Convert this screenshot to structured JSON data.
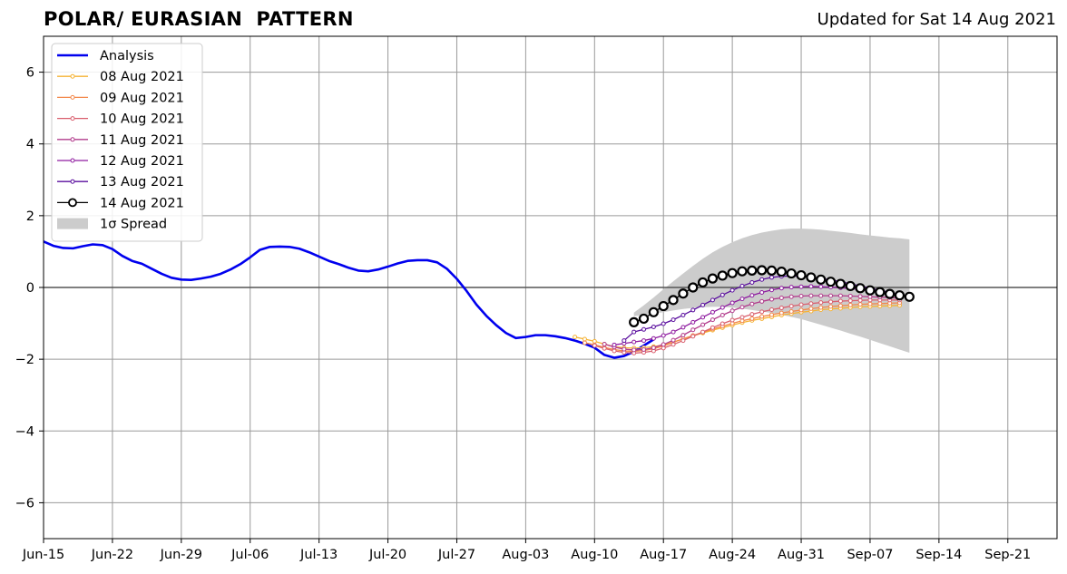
{
  "header": {
    "title": "POLAR/ EURASIAN  PATTERN",
    "updated": "Updated for Sat 14 Aug 2021"
  },
  "chart_data": {
    "type": "line",
    "title": "POLAR/ EURASIAN  PATTERN",
    "xlabel": "",
    "ylabel": "",
    "x_axis_type": "date",
    "xlim": [
      "2021-06-15",
      "2021-09-26"
    ],
    "ylim": [
      -7,
      7
    ],
    "x_ticks": [
      "2021-06-15",
      "2021-06-22",
      "2021-06-29",
      "2021-07-06",
      "2021-07-13",
      "2021-07-20",
      "2021-07-27",
      "2021-08-03",
      "2021-08-10",
      "2021-08-17",
      "2021-08-24",
      "2021-08-31",
      "2021-09-07",
      "2021-09-14",
      "2021-09-21"
    ],
    "x_tick_labels": [
      "Jun-15",
      "Jun-22",
      "Jun-29",
      "Jul-06",
      "Jul-13",
      "Jul-20",
      "Jul-27",
      "Aug-03",
      "Aug-10",
      "Aug-17",
      "Aug-24",
      "Aug-31",
      "Sep-07",
      "Sep-14",
      "Sep-21"
    ],
    "y_ticks": [
      -6,
      -4,
      -2,
      0,
      2,
      4,
      6
    ],
    "y_tick_labels": [
      "−6",
      "−4",
      "−2",
      "0",
      "2",
      "4",
      "6"
    ],
    "grid": true,
    "zero_line": 0,
    "legend_position": "top-left",
    "series": [
      {
        "name": "Analysis",
        "style": "analysis",
        "color": "#0000ee",
        "start_date": "2021-06-15",
        "values": [
          1.28,
          1.16,
          1.1,
          1.09,
          1.15,
          1.2,
          1.18,
          1.07,
          0.88,
          0.74,
          0.66,
          0.52,
          0.38,
          0.27,
          0.22,
          0.21,
          0.25,
          0.3,
          0.38,
          0.5,
          0.65,
          0.84,
          1.05,
          1.13,
          1.14,
          1.13,
          1.08,
          0.98,
          0.86,
          0.74,
          0.65,
          0.55,
          0.47,
          0.45,
          0.5,
          0.58,
          0.67,
          0.74,
          0.76,
          0.76,
          0.7,
          0.52,
          0.24,
          -0.1,
          -0.48,
          -0.79,
          -1.05,
          -1.27,
          -1.41,
          -1.38,
          -1.33,
          -1.33,
          -1.36,
          -1.41,
          -1.48,
          -1.57,
          -1.68,
          -1.88,
          -1.96,
          -1.91,
          -1.79,
          -1.62,
          -1.45
        ]
      },
      {
        "name": "08 Aug 2021",
        "style": "forecast",
        "color": "#f5b335",
        "start_date": "2021-08-08",
        "values": [
          -1.38,
          -1.44,
          -1.5,
          -1.58,
          -1.65,
          -1.68,
          -1.69,
          -1.68,
          -1.65,
          -1.6,
          -1.52,
          -1.44,
          -1.35,
          -1.27,
          -1.19,
          -1.12,
          -1.05,
          -0.98,
          -0.92,
          -0.87,
          -0.82,
          -0.77,
          -0.73,
          -0.69,
          -0.66,
          -0.62,
          -0.6,
          -0.58,
          -0.56,
          -0.54,
          -0.53,
          -0.52,
          -0.51,
          -0.5
        ]
      },
      {
        "name": "09 Aug 2021",
        "style": "forecast",
        "color": "#f3884a",
        "start_date": "2021-08-09",
        "values": [
          -1.54,
          -1.6,
          -1.67,
          -1.73,
          -1.77,
          -1.78,
          -1.76,
          -1.71,
          -1.63,
          -1.53,
          -1.43,
          -1.34,
          -1.25,
          -1.16,
          -1.08,
          -1.0,
          -0.93,
          -0.87,
          -0.81,
          -0.76,
          -0.71,
          -0.67,
          -0.63,
          -0.59,
          -0.56,
          -0.53,
          -0.51,
          -0.49,
          -0.47,
          -0.46,
          -0.45,
          -0.44,
          -0.43
        ]
      },
      {
        "name": "10 Aug 2021",
        "style": "forecast",
        "color": "#d95f6e",
        "start_date": "2021-08-10",
        "values": [
          -1.62,
          -1.7,
          -1.77,
          -1.81,
          -1.83,
          -1.81,
          -1.77,
          -1.69,
          -1.59,
          -1.48,
          -1.36,
          -1.24,
          -1.12,
          -1.01,
          -0.91,
          -0.83,
          -0.75,
          -0.68,
          -0.62,
          -0.57,
          -0.52,
          -0.48,
          -0.45,
          -0.42,
          -0.4,
          -0.38,
          -0.37,
          -0.36,
          -0.35,
          -0.35,
          -0.35,
          -0.35
        ]
      },
      {
        "name": "11 Aug 2021",
        "style": "forecast",
        "color": "#b23b8c",
        "start_date": "2021-08-11",
        "values": [
          -1.58,
          -1.66,
          -1.72,
          -1.74,
          -1.73,
          -1.68,
          -1.59,
          -1.47,
          -1.33,
          -1.18,
          -1.04,
          -0.9,
          -0.77,
          -0.65,
          -0.55,
          -0.46,
          -0.39,
          -0.33,
          -0.29,
          -0.26,
          -0.24,
          -0.23,
          -0.23,
          -0.23,
          -0.23,
          -0.24,
          -0.25,
          -0.26,
          -0.27,
          -0.28,
          -0.3
        ]
      },
      {
        "name": "12 Aug 2021",
        "style": "forecast",
        "color": "#8f1ca0",
        "start_date": "2021-08-12",
        "values": [
          -1.6,
          -1.56,
          -1.52,
          -1.48,
          -1.42,
          -1.34,
          -1.24,
          -1.11,
          -0.97,
          -0.83,
          -0.69,
          -0.56,
          -0.43,
          -0.32,
          -0.22,
          -0.14,
          -0.07,
          -0.02,
          0.01,
          0.02,
          0.03,
          0.02,
          0.01,
          -0.01,
          -0.03,
          -0.06,
          -0.1,
          -0.14,
          -0.18,
          -0.23
        ]
      },
      {
        "name": "13 Aug 2021",
        "style": "forecast",
        "color": "#5a0e9e",
        "start_date": "2021-08-13",
        "values": [
          -1.48,
          -1.24,
          -1.17,
          -1.1,
          -1.01,
          -0.9,
          -0.77,
          -0.63,
          -0.49,
          -0.35,
          -0.21,
          -0.08,
          0.04,
          0.14,
          0.22,
          0.28,
          0.31,
          0.32,
          0.31,
          0.29,
          0.25,
          0.21,
          0.16,
          0.1,
          0.04,
          -0.02,
          -0.08,
          -0.14,
          -0.2
        ]
      },
      {
        "name": "14 Aug 2021",
        "style": "current",
        "color": "#000000",
        "start_date": "2021-08-14",
        "values": [
          -0.97,
          -0.87,
          -0.69,
          -0.52,
          -0.35,
          -0.17,
          0.0,
          0.14,
          0.25,
          0.33,
          0.4,
          0.45,
          0.47,
          0.48,
          0.47,
          0.44,
          0.39,
          0.34,
          0.28,
          0.22,
          0.16,
          0.1,
          0.04,
          -0.02,
          -0.08,
          -0.13,
          -0.18,
          -0.22,
          -0.26
        ]
      }
    ],
    "spread": {
      "name": "1σ Spread",
      "color": "#cccccc",
      "start_date": "2021-08-14",
      "upper": [
        -0.7,
        -0.5,
        -0.28,
        -0.05,
        0.17,
        0.39,
        0.6,
        0.8,
        0.98,
        1.13,
        1.26,
        1.37,
        1.46,
        1.53,
        1.58,
        1.62,
        1.64,
        1.64,
        1.63,
        1.61,
        1.58,
        1.55,
        1.52,
        1.48,
        1.45,
        1.42,
        1.39,
        1.37,
        1.34
      ],
      "lower": [
        -0.8,
        -0.77,
        -0.73,
        -0.69,
        -0.64,
        -0.6,
        -0.57,
        -0.55,
        -0.54,
        -0.54,
        -0.56,
        -0.59,
        -0.63,
        -0.67,
        -0.71,
        -0.76,
        -0.82,
        -0.88,
        -0.96,
        -1.04,
        -1.12,
        -1.2,
        -1.29,
        -1.37,
        -1.46,
        -1.55,
        -1.64,
        -1.73,
        -1.82
      ]
    }
  }
}
